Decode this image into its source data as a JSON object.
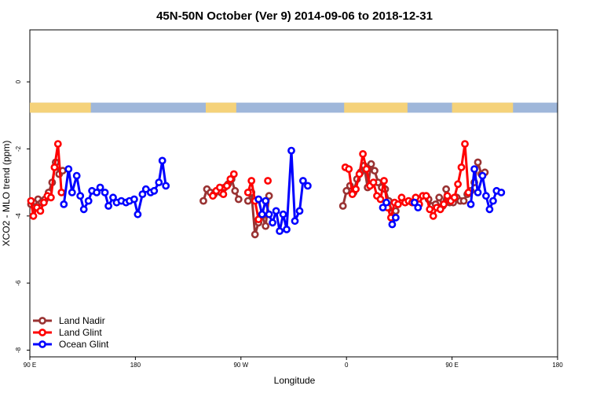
{
  "chart_data": {
    "type": "line",
    "title": "45N-50N October (Ver 9)   2014-09-06 to 2018-12-31",
    "xlabel": "Longitude",
    "ylabel": "XCO2 - MLO trend (ppm)",
    "x_ticks": [
      {
        "value": 90,
        "label": "90 E"
      },
      {
        "value": 180,
        "label": "180"
      },
      {
        "value": 270,
        "label": "90 W"
      },
      {
        "value": 360,
        "label": "0"
      },
      {
        "value": 450,
        "label": "90 E"
      },
      {
        "value": 540,
        "label": "180"
      }
    ],
    "y_ticks": [
      {
        "value": 0,
        "label": "0"
      },
      {
        "value": -2,
        "label": "-2"
      },
      {
        "value": -4,
        "label": "-4"
      },
      {
        "value": -6,
        "label": "-6"
      },
      {
        "value": -8,
        "label": "-8"
      }
    ],
    "xlim": [
      90,
      540
    ],
    "ylim": [
      -8.2,
      1.55
    ],
    "land_mask_band": {
      "y_range": [
        -0.62,
        -0.92
      ],
      "land_color": "#F5D27A",
      "ocean_color": "#9FB7DA",
      "land_segments_x": [
        [
          90,
          142
        ],
        [
          240,
          266
        ],
        [
          358,
          412
        ],
        [
          450,
          502
        ]
      ]
    },
    "legend": {
      "position": "bottom-left",
      "entries": [
        {
          "label": "Land Nadir",
          "color": "#993333"
        },
        {
          "label": "Land Glint",
          "color": "#FF0000"
        },
        {
          "label": "Ocean Glint",
          "color": "#0000FF"
        }
      ]
    },
    "series": [
      {
        "name": "Land Nadir",
        "color": "#993333",
        "segments": [
          [
            [
              91,
              -3.65
            ],
            [
              94,
              -3.75
            ],
            [
              97,
              -3.5
            ],
            [
              100,
              -3.6
            ],
            [
              103,
              -3.5
            ],
            [
              106,
              -3.3
            ],
            [
              109,
              -3.0
            ],
            [
              112,
              -2.4
            ],
            [
              115,
              -2.75
            ],
            [
              118,
              -2.65
            ]
          ],
          [
            [
              238,
              -3.55
            ],
            [
              241,
              -3.2
            ],
            [
              244,
              -3.3
            ],
            [
              247,
              -3.35
            ],
            [
              250,
              -3.25
            ],
            [
              253,
              -3.3
            ],
            [
              256,
              -3.15
            ],
            [
              259,
              -3.05
            ],
            [
              262,
              -2.9
            ],
            [
              265,
              -3.25
            ],
            [
              268,
              -3.5
            ]
          ],
          [
            [
              276,
              -3.55
            ],
            [
              279,
              -3.3
            ],
            [
              282,
              -4.55
            ],
            [
              285,
              -4.2
            ],
            [
              288,
              -4.0
            ],
            [
              291,
              -4.3
            ],
            [
              294,
              -3.4
            ]
          ],
          [
            [
              357,
              -3.7
            ],
            [
              360,
              -3.25
            ],
            [
              363,
              -3.1
            ],
            [
              366,
              -3.3
            ],
            [
              369,
              -2.9
            ],
            [
              372,
              -2.7
            ],
            [
              375,
              -2.5
            ],
            [
              378,
              -3.15
            ],
            [
              381,
              -2.45
            ],
            [
              384,
              -2.65
            ],
            [
              387,
              -3.0
            ],
            [
              390,
              -3.15
            ],
            [
              393,
              -3.2
            ],
            [
              396,
              -3.55
            ],
            [
              399,
              -3.9
            ],
            [
              402,
              -3.85
            ]
          ],
          [
            [
              430,
              -3.5
            ],
            [
              433,
              -3.7
            ],
            [
              436,
              -3.65
            ],
            [
              439,
              -3.45
            ],
            [
              442,
              -3.7
            ],
            [
              445,
              -3.2
            ],
            [
              448,
              -3.6
            ],
            [
              451,
              -3.6
            ],
            [
              454,
              -3.45
            ],
            [
              457,
              -3.55
            ],
            [
              460,
              -3.55
            ],
            [
              463,
              -3.35
            ],
            [
              466,
              -3.25
            ],
            [
              469,
              -3.0
            ],
            [
              472,
              -2.4
            ],
            [
              475,
              -2.75
            ],
            [
              478,
              -2.7
            ]
          ]
        ]
      },
      {
        "name": "Land Glint",
        "color": "#FF0000",
        "segments": [
          [
            [
              91,
              -3.55
            ],
            [
              93,
              -4.0
            ],
            [
              96,
              -3.75
            ],
            [
              99,
              -3.85
            ],
            [
              102,
              -3.6
            ],
            [
              105,
              -3.4
            ],
            [
              108,
              -3.45
            ],
            [
              111,
              -2.55
            ],
            [
              114,
              -1.85
            ],
            [
              117,
              -3.3
            ]
          ],
          [
            [
              246,
              -3.4
            ],
            [
              249,
              -3.25
            ],
            [
              252,
              -3.15
            ],
            [
              255,
              -3.35
            ],
            [
              258,
              -3.1
            ],
            [
              261,
              -2.9
            ],
            [
              264,
              -2.75
            ]
          ],
          [
            [
              276,
              -3.3
            ],
            [
              279,
              -2.95
            ],
            [
              282,
              -3.55
            ],
            [
              285,
              -4.1
            ]
          ],
          [
            [
              293,
              -2.95
            ]
          ],
          [
            [
              359,
              -2.55
            ],
            [
              362,
              -2.6
            ],
            [
              365,
              -3.35
            ],
            [
              368,
              -3.2
            ],
            [
              371,
              -2.75
            ],
            [
              374,
              -2.15
            ],
            [
              377,
              -2.6
            ],
            [
              380,
              -3.1
            ],
            [
              383,
              -3.0
            ],
            [
              386,
              -3.4
            ],
            [
              389,
              -3.5
            ],
            [
              392,
              -2.95
            ],
            [
              395,
              -3.75
            ],
            [
              398,
              -4.05
            ],
            [
              401,
              -3.6
            ],
            [
              404,
              -3.65
            ],
            [
              407,
              -3.45
            ],
            [
              410,
              -3.6
            ],
            [
              413,
              -3.55
            ],
            [
              416,
              -3.6
            ],
            [
              419,
              -3.45
            ],
            [
              422,
              -3.65
            ],
            [
              425,
              -3.4
            ],
            [
              428,
              -3.4
            ],
            [
              431,
              -3.8
            ],
            [
              434,
              -4.0
            ],
            [
              437,
              -3.75
            ],
            [
              440,
              -3.8
            ],
            [
              443,
              -3.65
            ],
            [
              446,
              -3.4
            ],
            [
              449,
              -3.55
            ],
            [
              452,
              -3.45
            ],
            [
              455,
              -3.05
            ],
            [
              458,
              -2.55
            ],
            [
              461,
              -1.85
            ],
            [
              464,
              -3.3
            ]
          ]
        ]
      },
      {
        "name": "Ocean Glint",
        "color": "#0000FF",
        "segments": [
          [
            [
              119,
              -3.65
            ],
            [
              123,
              -2.6
            ],
            [
              126,
              -3.3
            ],
            [
              130,
              -2.8
            ],
            [
              133,
              -3.4
            ],
            [
              136,
              -3.8
            ],
            [
              140,
              -3.55
            ],
            [
              143,
              -3.25
            ],
            [
              147,
              -3.3
            ],
            [
              150,
              -3.15
            ],
            [
              154,
              -3.3
            ],
            [
              157,
              -3.7
            ],
            [
              161,
              -3.45
            ],
            [
              164,
              -3.6
            ],
            [
              168,
              -3.55
            ],
            [
              172,
              -3.6
            ],
            [
              175,
              -3.55
            ],
            [
              179,
              -3.5
            ],
            [
              182,
              -3.95
            ],
            [
              186,
              -3.35
            ],
            [
              189,
              -3.2
            ],
            [
              193,
              -3.3
            ],
            [
              196,
              -3.25
            ],
            [
              200,
              -3.0
            ],
            [
              203,
              -2.35
            ],
            [
              206,
              -3.1
            ]
          ],
          [
            [
              285,
              -3.5
            ],
            [
              288,
              -3.95
            ],
            [
              291,
              -3.55
            ],
            [
              294,
              -3.95
            ],
            [
              297,
              -4.2
            ],
            [
              300,
              -3.85
            ],
            [
              303,
              -4.45
            ],
            [
              306,
              -3.95
            ],
            [
              309,
              -4.4
            ],
            [
              313,
              -2.05
            ],
            [
              316,
              -4.15
            ],
            [
              320,
              -3.85
            ],
            [
              323,
              -2.95
            ],
            [
              327,
              -3.1
            ]
          ],
          [
            [
              391,
              -3.75
            ],
            [
              394,
              -3.6
            ]
          ],
          [
            [
              399,
              -4.25
            ],
            [
              402,
              -4.05
            ]
          ],
          [
            [
              418,
              -3.6
            ],
            [
              421,
              -3.75
            ]
          ],
          [
            [
              466,
              -3.65
            ],
            [
              469,
              -2.6
            ],
            [
              472,
              -3.3
            ],
            [
              476,
              -2.8
            ],
            [
              479,
              -3.4
            ],
            [
              482,
              -3.8
            ],
            [
              485,
              -3.55
            ],
            [
              488,
              -3.25
            ],
            [
              492,
              -3.3
            ]
          ]
        ]
      }
    ]
  }
}
